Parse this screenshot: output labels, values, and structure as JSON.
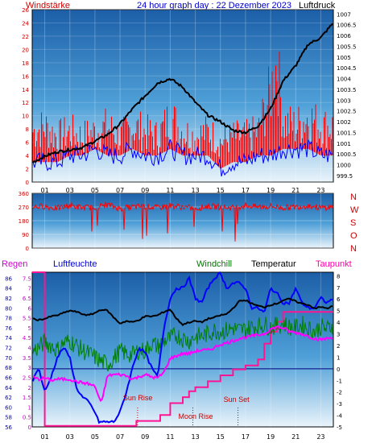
{
  "header": {
    "left_label": "Windstärke",
    "title": "24 hour graph day : 22 Dezember 2023",
    "right_label": "Luftdruck"
  },
  "colors": {
    "background": "#ffffff",
    "plot_top": "#1c5fa8",
    "plot_bottom": "#e8f3fb",
    "wind_gust": "#ff0000",
    "wind_avg": "#0000ff",
    "pressure": "#000000",
    "direction": "#ff0000",
    "dir_axis": "#cc0000",
    "rain": "#ff1493",
    "humidity": "#0000ff",
    "windchill": "#008000",
    "temperature": "#000000",
    "dewpoint": "#ff00ff",
    "label_red": "#cc0000",
    "label_blue": "#0000cc",
    "label_green": "#007700",
    "label_magenta": "#ff00aa",
    "label_rain": "#cc00cc",
    "annotation": "#cc0000"
  },
  "compass_letters": [
    "N",
    "W",
    "S",
    "O",
    "N"
  ],
  "x_ticks": [
    "01",
    "03",
    "05",
    "07",
    "09",
    "11",
    "13",
    "15",
    "17",
    "19",
    "21",
    "23"
  ],
  "panel3_labels": {
    "rain": "Regen",
    "humidity": "Luftfeuchte",
    "windchill": "Windchill",
    "temperature": "Temperatur",
    "dewpoint": "Taupunkt"
  },
  "annotations": {
    "sun_rise": "Sun Rise",
    "moon_rise": "Moon Rise",
    "sun_set": "Sun Set"
  },
  "chart_data": [
    {
      "type": "line",
      "title": "24 hour graph day : 22 Dezember 2023",
      "x_unit": "hour",
      "xlim": [
        0,
        24
      ],
      "y_left": {
        "label": "Windstärke",
        "ticks": [
          0,
          2,
          4,
          6,
          8,
          10,
          12,
          14,
          16,
          18,
          20,
          22,
          24,
          26
        ],
        "ylim": [
          0,
          26
        ]
      },
      "y_right": {
        "label": "Luftdruck",
        "ticks": [
          999.5,
          1000,
          1000.5,
          1001,
          1001.5,
          1002,
          1002.5,
          1003,
          1003.5,
          1004,
          1004.5,
          1005,
          1005.5,
          1006,
          1006.5,
          1007
        ],
        "ylim": [
          999.2,
          1007.2
        ]
      },
      "series": [
        {
          "axis": "left",
          "style": "gust",
          "x": [
            0,
            1,
            2,
            3,
            4,
            5,
            6,
            7,
            8,
            9,
            10,
            11,
            12,
            13,
            14,
            15,
            16,
            17,
            18,
            19,
            19.5,
            20,
            21,
            22,
            23,
            24
          ],
          "y": [
            10,
            11,
            9,
            10,
            9,
            10,
            11,
            9,
            11,
            10,
            9,
            13,
            10,
            9,
            10,
            8,
            9,
            9,
            10,
            18,
            24,
            12,
            11,
            13,
            11,
            11
          ]
        },
        {
          "axis": "left",
          "style": "avg",
          "x": [
            0,
            1,
            2,
            3,
            4,
            5,
            6,
            7,
            8,
            9,
            10,
            11,
            12,
            13,
            14,
            15,
            16,
            17,
            18,
            19,
            20,
            21,
            22,
            23,
            24
          ],
          "y": [
            3,
            3,
            3,
            4,
            4,
            5,
            4,
            4,
            5,
            4,
            4,
            5,
            4,
            4,
            4,
            2,
            3,
            3,
            4,
            4,
            5,
            5,
            5,
            4,
            4
          ]
        },
        {
          "axis": "right",
          "style": "pressure",
          "x": [
            0,
            1,
            2,
            3,
            4,
            5,
            6,
            7,
            8,
            9,
            10,
            11,
            12,
            13,
            14,
            15,
            16,
            17,
            18,
            19,
            20,
            21,
            22,
            23,
            24
          ],
          "y": [
            1000.1,
            1000.4,
            1000.6,
            1000.7,
            1000.8,
            1001.1,
            1001.4,
            1001.9,
            1002.6,
            1003.2,
            1003.8,
            1004.0,
            1003.6,
            1002.9,
            1002.3,
            1002.0,
            1001.6,
            1001.5,
            1001.8,
            1002.6,
            1003.9,
            1004.6,
            1005.6,
            1005.9,
            1006.6
          ]
        }
      ]
    },
    {
      "type": "line",
      "xlim": [
        0,
        24
      ],
      "y_left": {
        "ticks": [
          0,
          90,
          180,
          270,
          360
        ],
        "ylim": [
          0,
          360
        ]
      },
      "series": [
        {
          "style": "direction",
          "x": [
            0,
            1,
            2,
            3,
            4,
            5,
            6,
            7,
            8,
            9,
            10,
            11,
            12,
            13,
            14,
            15,
            16,
            17,
            18,
            19,
            20,
            21,
            22,
            23,
            24
          ],
          "y": [
            270,
            275,
            260,
            280,
            265,
            270,
            285,
            260,
            270,
            275,
            265,
            280,
            270,
            260,
            275,
            270,
            265,
            280,
            270,
            275,
            265,
            270,
            280,
            265,
            270
          ]
        }
      ]
    },
    {
      "type": "line",
      "xlim": [
        0,
        24
      ],
      "y_left_outer": {
        "label": "Regen",
        "ticks": [
          0,
          0.5,
          1,
          1.5,
          2,
          2.5,
          3,
          3.5,
          4,
          4.5,
          5,
          5.5,
          6,
          6.5,
          7,
          7.5
        ],
        "ylim": [
          0,
          7.8
        ]
      },
      "y_left_inner": {
        "label": "Luftfeuchte",
        "ticks": [
          56,
          58,
          60,
          62,
          64,
          66,
          68,
          70,
          72,
          74,
          76,
          78,
          80,
          82,
          84,
          86
        ],
        "ylim": [
          56,
          87.2
        ]
      },
      "y_right": {
        "ticks": [
          -5,
          -4,
          -3,
          -2,
          -1,
          0,
          1,
          2,
          3,
          4,
          5,
          6,
          7,
          8
        ],
        "ylim": [
          -5,
          8.3
        ]
      },
      "series": [
        {
          "name": "Regen",
          "axis": "rain",
          "x": [
            0,
            0.5,
            0.8,
            1,
            5.2,
            6.8,
            8,
            8.3,
            10,
            10.2,
            11,
            12,
            12.5,
            13,
            14,
            15,
            16,
            17,
            18,
            18.5,
            19,
            19.5,
            20,
            23,
            24
          ],
          "y": [
            7.8,
            7.8,
            7.8,
            0.05,
            0.05,
            0.05,
            0.05,
            0.3,
            0.3,
            0.6,
            1.2,
            1.5,
            1.8,
            2.0,
            2.3,
            2.6,
            2.9,
            3.1,
            3.4,
            4.2,
            4.8,
            5.3,
            5.8,
            5.8,
            5.8
          ]
        },
        {
          "name": "Luftfeuchte",
          "axis": "humidity",
          "x": [
            0,
            0.5,
            1,
            1.5,
            2,
            2.5,
            3,
            3.5,
            4,
            4.5,
            5,
            5.3,
            5.7,
            6,
            6.5,
            7,
            7.5,
            8,
            8.5,
            9,
            9.5,
            10,
            10.5,
            11,
            11.5,
            12,
            12.5,
            13,
            13.5,
            14,
            14.5,
            15,
            15.5,
            16,
            16.5,
            17,
            17.5,
            18,
            18.5,
            19,
            19.5,
            20,
            20.5,
            21,
            21.5,
            22,
            22.5,
            23,
            23.5,
            24
          ],
          "y": [
            65,
            68,
            63,
            66,
            70,
            72,
            70,
            64,
            62,
            61,
            59,
            57,
            57,
            57,
            57,
            59,
            63,
            68,
            72,
            71,
            68,
            66,
            76,
            82,
            84,
            84,
            86,
            82,
            81,
            84,
            86,
            87,
            84,
            85,
            85,
            84,
            80,
            80,
            79,
            84,
            83,
            81,
            81,
            84,
            81,
            80,
            80,
            82,
            81,
            82
          ]
        },
        {
          "name": "Windchill",
          "axis": "temperature",
          "x": [
            0,
            0.5,
            1,
            1.5,
            2,
            2.5,
            3,
            3.5,
            4,
            4.5,
            5,
            5.5,
            6,
            6.5,
            7,
            7.5,
            8,
            8.5,
            9,
            9.5,
            10,
            10.5,
            11,
            11.5,
            12,
            12.5,
            13,
            13.5,
            14,
            14.5,
            15,
            15.5,
            16,
            16.5,
            17,
            17.5,
            18,
            18.5,
            19,
            19.5,
            20,
            20.5,
            21,
            21.5,
            22,
            22.5,
            23,
            23.5,
            24
          ],
          "y": [
            1.5,
            1.8,
            2.3,
            2.0,
            1.6,
            2.2,
            2.4,
            2.0,
            1.6,
            1.3,
            1.0,
            0.6,
            0.4,
            0.9,
            1.5,
            1.3,
            1.2,
            1.6,
            1.5,
            2.2,
            1.9,
            2.4,
            2.6,
            2.9,
            2.6,
            2.4,
            2.8,
            2.8,
            3.0,
            3.3,
            3.2,
            3.3,
            3.5,
            3.3,
            3.4,
            3.6,
            3.7,
            3.8,
            3.6,
            3.7,
            3.9,
            3.6,
            3.5,
            3.8,
            3.5,
            3.2,
            3.6,
            3.4,
            3.8
          ]
        },
        {
          "name": "Temperatur",
          "axis": "temperature",
          "x": [
            0,
            0.5,
            1,
            1.5,
            2,
            2.5,
            3,
            3.5,
            4,
            4.5,
            5,
            5.5,
            6,
            6.5,
            7,
            7.5,
            8,
            8.5,
            9,
            9.5,
            10,
            10.5,
            11,
            11.5,
            12,
            12.5,
            13,
            13.5,
            14,
            14.5,
            15,
            15.5,
            16,
            16.5,
            17,
            17.5,
            18,
            18.5,
            19,
            19.5,
            20,
            20.5,
            21,
            21.5,
            22,
            22.5,
            23,
            23.5,
            24
          ],
          "y": [
            4.3,
            4.2,
            4.3,
            4.5,
            4.6,
            4.8,
            5.0,
            4.9,
            4.7,
            4.6,
            4.8,
            5.1,
            5.0,
            4.4,
            3.9,
            4.1,
            4.0,
            4.2,
            4.5,
            4.5,
            4.6,
            4.9,
            5.1,
            4.3,
            3.8,
            4.0,
            4.1,
            4.0,
            4.3,
            4.4,
            4.6,
            4.7,
            5.2,
            5.8,
            5.9,
            5.6,
            5.4,
            5.3,
            5.5,
            5.6,
            5.9,
            6.0,
            5.8,
            5.6,
            5.5,
            5.2,
            5.3,
            5.2,
            5.4
          ]
        },
        {
          "name": "Taupunkt",
          "axis": "temperature",
          "x": [
            0,
            0.5,
            1,
            1.5,
            2,
            2.5,
            3,
            3.5,
            4,
            4.5,
            5,
            5.5,
            6,
            6.5,
            7,
            7.5,
            8,
            8.5,
            9,
            9.5,
            10,
            10.5,
            11,
            11.5,
            12,
            12.5,
            13,
            13.5,
            14,
            14.5,
            15,
            15.5,
            16,
            16.5,
            17,
            17.5,
            18,
            18.5,
            19,
            19.5,
            20,
            20.5,
            21,
            21.5,
            22,
            22.5,
            23,
            23.5,
            24
          ],
          "y": [
            -0.7,
            -0.9,
            -0.8,
            -1.0,
            -0.9,
            -0.9,
            -0.9,
            -1.1,
            -1.2,
            -1.3,
            -1.5,
            -3.0,
            -0.6,
            -0.5,
            -0.5,
            -0.6,
            -0.9,
            -0.7,
            -0.5,
            -0.7,
            -0.8,
            -0.3,
            0.9,
            1.1,
            1.3,
            1.3,
            1.5,
            1.6,
            1.6,
            1.8,
            2.1,
            2.2,
            2.4,
            2.6,
            2.7,
            2.8,
            2.9,
            3.0,
            3.4,
            3.6,
            3.5,
            3.2,
            3.1,
            3.0,
            2.8,
            2.6,
            2.5,
            2.6,
            2.7
          ]
        }
      ],
      "horizontal_line": {
        "axis": "temperature",
        "value": 0
      },
      "events": [
        {
          "label": "Sun Rise",
          "hour": 8.4
        },
        {
          "label": "Moon Rise",
          "hour": 12.8
        },
        {
          "label": "Sun Set",
          "hour": 16.4
        }
      ]
    }
  ]
}
